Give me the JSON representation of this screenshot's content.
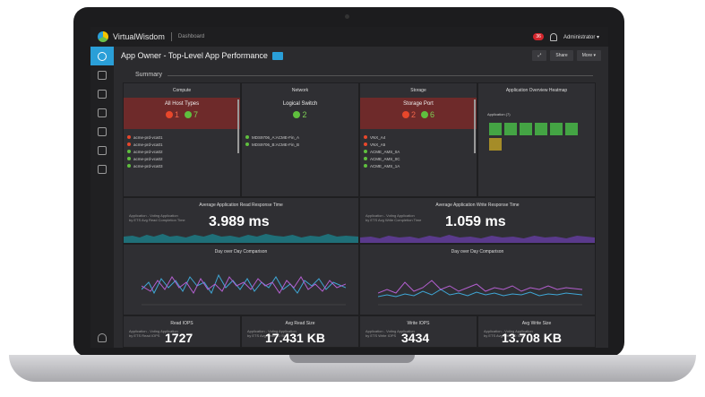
{
  "topbar": {
    "brand": "VirtualWisdom",
    "breadcrumb": "Dashboard",
    "alert_count": "36",
    "user": "Administrator ▾"
  },
  "page": {
    "title": "App Owner - Top-Level App Performance",
    "summary_label": "Summary",
    "actions": [
      "Share",
      "More ▾"
    ]
  },
  "sidebar": {
    "icons": [
      "gauge-icon",
      "network-icon",
      "layers-icon",
      "alarm-icon",
      "chart-icon",
      "report-icon",
      "gear-icon"
    ]
  },
  "compute": {
    "title": "Compute",
    "box_title": "All Host Types",
    "red": "1",
    "green": "7",
    "rows": [
      {
        "status": "red",
        "label": "acme-prd-vca01"
      },
      {
        "status": "red",
        "label": "acme-prd-vca01"
      },
      {
        "status": "green",
        "label": "acme-prd-vca02"
      },
      {
        "status": "green",
        "label": "acme-prd-vca02"
      },
      {
        "status": "green",
        "label": "acme-prd-vca03"
      }
    ]
  },
  "network": {
    "title": "Network",
    "box_title": "Logical Switch",
    "green": "2",
    "rows": [
      {
        "status": "green",
        "label": "MDS9706_A:ACME-Fin_A"
      },
      {
        "status": "green",
        "label": "MDS9706_B:ACME-Fin_B"
      }
    ]
  },
  "storage": {
    "title": "Storage",
    "box_title": "Storage Port",
    "red": "2",
    "green": "6",
    "rows": [
      {
        "status": "red",
        "label": "VNX_A4"
      },
      {
        "status": "red",
        "label": "VNX_A5"
      },
      {
        "status": "green",
        "label": "ACME_AMS_0A"
      },
      {
        "status": "green",
        "label": "ACME_AMS_0C"
      },
      {
        "status": "green",
        "label": "ACME_AMS_1A"
      }
    ]
  },
  "heatmap": {
    "title": "Application Overview Heatmap",
    "label": "Application (7)",
    "cells": [
      "ok",
      "ok",
      "ok",
      "ok",
      "ok",
      "ok",
      "warn"
    ],
    "colors": {
      "ok": "#44a444",
      "warn": "#a58c28"
    }
  },
  "read_response": {
    "title": "Average Application Read Response Time",
    "caption": "Application - Voting Application\nby ETS Avg Read Completion Time",
    "value": "3.989 ms"
  },
  "write_response": {
    "title": "Average Application Write Response Time",
    "caption": "Application - Voting Application\nby ETS Avg Write Completion Time",
    "value": "1.059 ms"
  },
  "dod_left": {
    "title": "Day over Day Comparison"
  },
  "dod_right": {
    "title": "Day over Day Comparison"
  },
  "read_iops": {
    "title": "Read IOPS",
    "caption": "Application - Voting Application\nby ETS Read IOPS",
    "value": "1727"
  },
  "read_size": {
    "title": "Avg Read Size",
    "caption": "Application - Voting Application\nby ETS Avg Read IO Size",
    "value": "17.431 KB"
  },
  "write_iops": {
    "title": "Write IOPS",
    "caption": "Application - Voting Application\nby ETS Write IOPS",
    "value": "3434"
  },
  "write_size": {
    "title": "Avg Write Size",
    "caption": "Application - Voting Application\nby ETS Avg Write IO Size",
    "value": "13.708 KB"
  },
  "colors": {
    "accent": "#2a9fd8",
    "teal": "#1f6f78",
    "purple": "#6a3f99",
    "critical": "#e8472b",
    "healthy": "#5fbf3e"
  }
}
